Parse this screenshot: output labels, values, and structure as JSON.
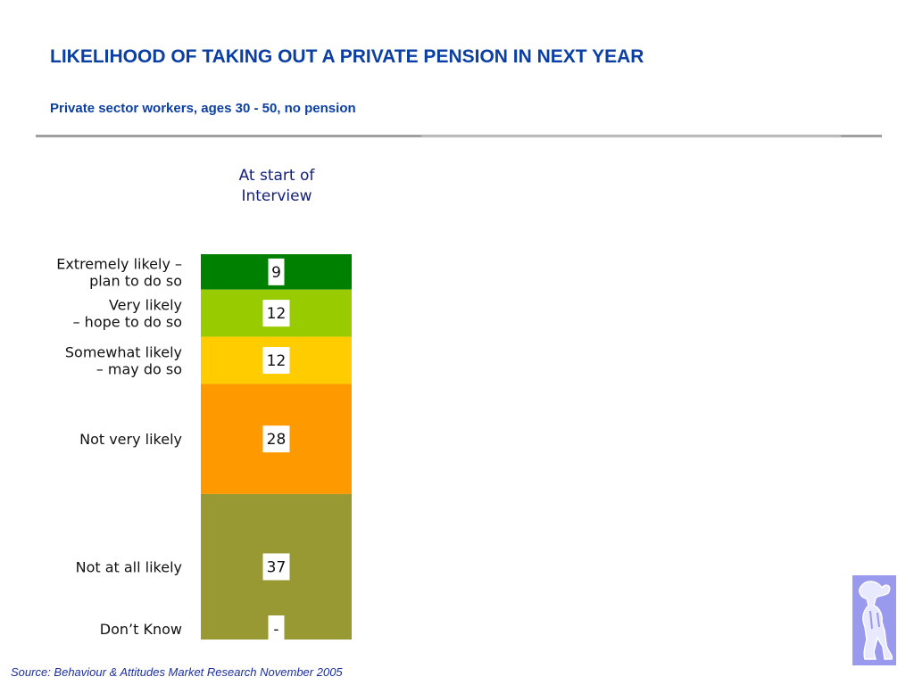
{
  "title": "LIKELIHOOD OF TAKING OUT A PRIVATE PENSION IN NEXT YEAR",
  "subtitle": "Private sector workers, ages 30 - 50, no pension",
  "column_header": [
    "At start of",
    "Interview"
  ],
  "source": "Source: Behaviour & Attitudes Market Research November 2005",
  "logo_icon": "abstract-figure-logo-icon",
  "chart_data": {
    "type": "bar",
    "stacked": true,
    "unit": "%",
    "categories": [
      {
        "label": [
          "Extremely likely –",
          "plan to do so"
        ],
        "value": 9,
        "display": "9",
        "color": "#008000"
      },
      {
        "label": [
          "Very likely",
          "– hope to do so"
        ],
        "value": 12,
        "display": "12",
        "color": "#99cc00"
      },
      {
        "label": [
          "Somewhat likely",
          "– may do so"
        ],
        "value": 12,
        "display": "12",
        "color": "#ffcc00"
      },
      {
        "label": [
          "Not very likely"
        ],
        "value": 28,
        "display": "28",
        "color": "#ff9900"
      },
      {
        "label": [
          "Not at all likely"
        ],
        "value": 37,
        "display": "37",
        "color": "#999933"
      },
      {
        "label": [
          "Don’t Know"
        ],
        "value": 0,
        "display": "-",
        "color": "#999933"
      }
    ],
    "series": [
      {
        "values": [
          9,
          12,
          12,
          28,
          37,
          0
        ]
      }
    ]
  }
}
